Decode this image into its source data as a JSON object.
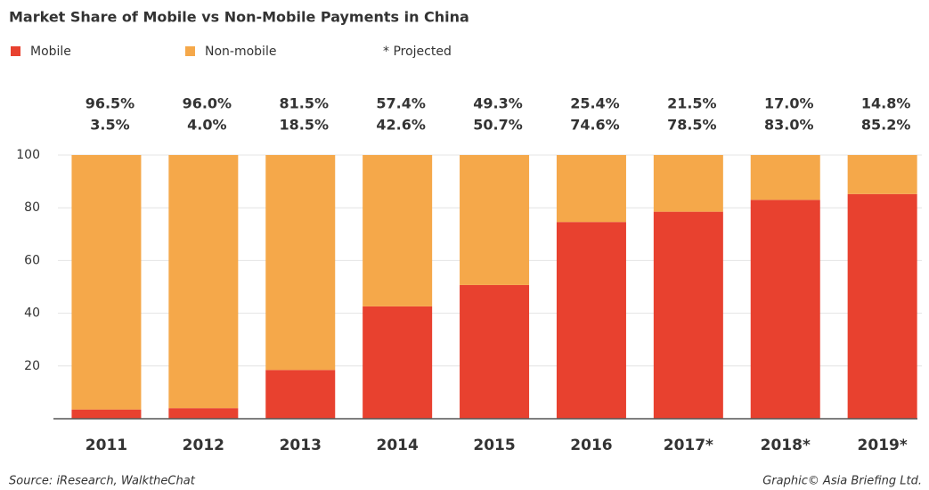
{
  "chart_data": {
    "type": "stacked_bar",
    "title": "Market Share of Mobile vs Non-Mobile Payments in China",
    "note": "* Projected",
    "source": "Source: iResearch, WalktheChat",
    "credit": "Graphic© Asia Briefing Ltd.",
    "categories": [
      "2011",
      "2012",
      "2013",
      "2014",
      "2015",
      "2016",
      "2017*",
      "2018*",
      "2019*"
    ],
    "series": [
      {
        "name": "Mobile",
        "color": "#e8412f",
        "values": [
          3.5,
          4.0,
          18.5,
          42.6,
          50.7,
          74.6,
          78.5,
          83.0,
          85.2
        ],
        "value_labels": [
          "3.5%",
          "4.0%",
          "18.5%",
          "42.6%",
          "50.7%",
          "74.6%",
          "78.5%",
          "83.0%",
          "85.2%"
        ]
      },
      {
        "name": "Non-mobile",
        "color": "#f5a84a",
        "values": [
          96.5,
          96.0,
          81.5,
          57.4,
          49.3,
          25.4,
          21.5,
          17.0,
          14.8
        ],
        "value_labels": [
          "96.5%",
          "96.0%",
          "81.5%",
          "57.4%",
          "49.3%",
          "25.4%",
          "21.5%",
          "17.0%",
          "14.8%"
        ]
      }
    ],
    "ylim": [
      0,
      100
    ],
    "yticks": [
      20,
      40,
      60,
      80,
      100
    ],
    "grid": true
  }
}
